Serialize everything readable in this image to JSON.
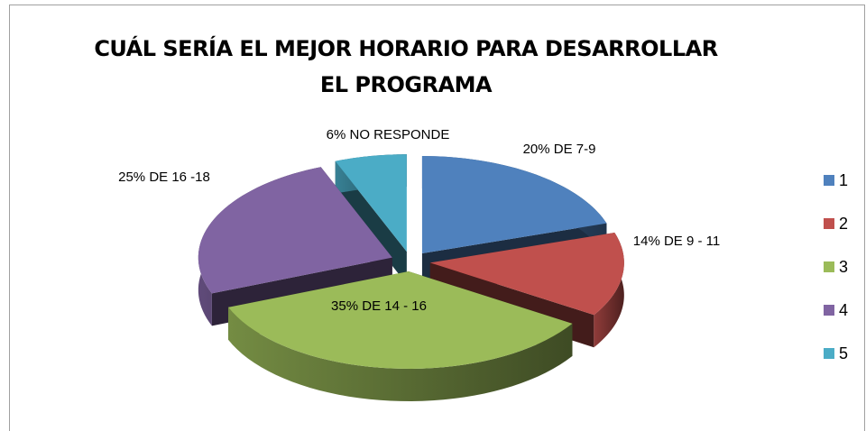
{
  "chart_data": {
    "type": "pie",
    "title": "CUÁL SERÍA EL MEJOR HORARIO PARA DESARROLLAR EL PROGRAMA",
    "categories": [
      "1",
      "2",
      "3",
      "4",
      "5"
    ],
    "values": [
      20,
      14,
      35,
      25,
      6
    ],
    "value_labels": [
      "20%  DE 7-9",
      "14% DE 9 - 11",
      "35% DE 14 - 16",
      "25%  DE  16 -18",
      "6% NO RESPONDE"
    ],
    "colors": [
      "#4f81bd",
      "#c0504d",
      "#9bbb59",
      "#8064a2",
      "#4bacc6"
    ],
    "legend": "right"
  }
}
